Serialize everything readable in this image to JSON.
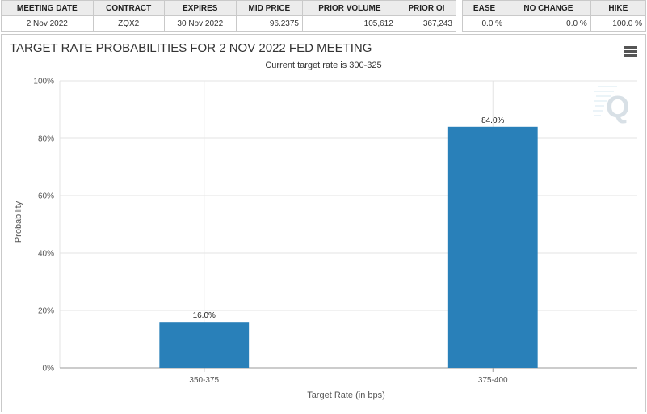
{
  "meeting_table": {
    "headers": [
      "MEETING DATE",
      "CONTRACT",
      "EXPIRES",
      "MID PRICE",
      "PRIOR VOLUME",
      "PRIOR OI"
    ],
    "row": [
      "2 Nov 2022",
      "ZQX2",
      "30 Nov 2022",
      "96.2375",
      "105,612",
      "367,243"
    ]
  },
  "prob_table": {
    "headers": [
      "EASE",
      "NO CHANGE",
      "HIKE"
    ],
    "row": [
      "0.0 %",
      "0.0 %",
      "100.0 %"
    ]
  },
  "chart": {
    "title": "TARGET RATE PROBABILITIES FOR 2 NOV 2022 FED MEETING",
    "subtitle": "Current target rate is 300-325",
    "menu_icon": "hamburger-menu-icon",
    "watermark_icon": "q-logo-icon"
  },
  "chart_data": {
    "type": "bar",
    "title": "TARGET RATE PROBABILITIES FOR 2 NOV 2022 FED MEETING",
    "subtitle": "Current target rate is 300-325",
    "categories": [
      "350-375",
      "375-400"
    ],
    "values": [
      16.0,
      84.0
    ],
    "data_labels": [
      "16.0%",
      "84.0%"
    ],
    "xlabel": "Target Rate (in bps)",
    "ylabel": "Probability",
    "ylim": [
      0,
      100
    ],
    "yticks": [
      "0%",
      "20%",
      "40%",
      "60%",
      "80%",
      "100%"
    ],
    "grid": true,
    "bar_color": "#2980b9"
  }
}
